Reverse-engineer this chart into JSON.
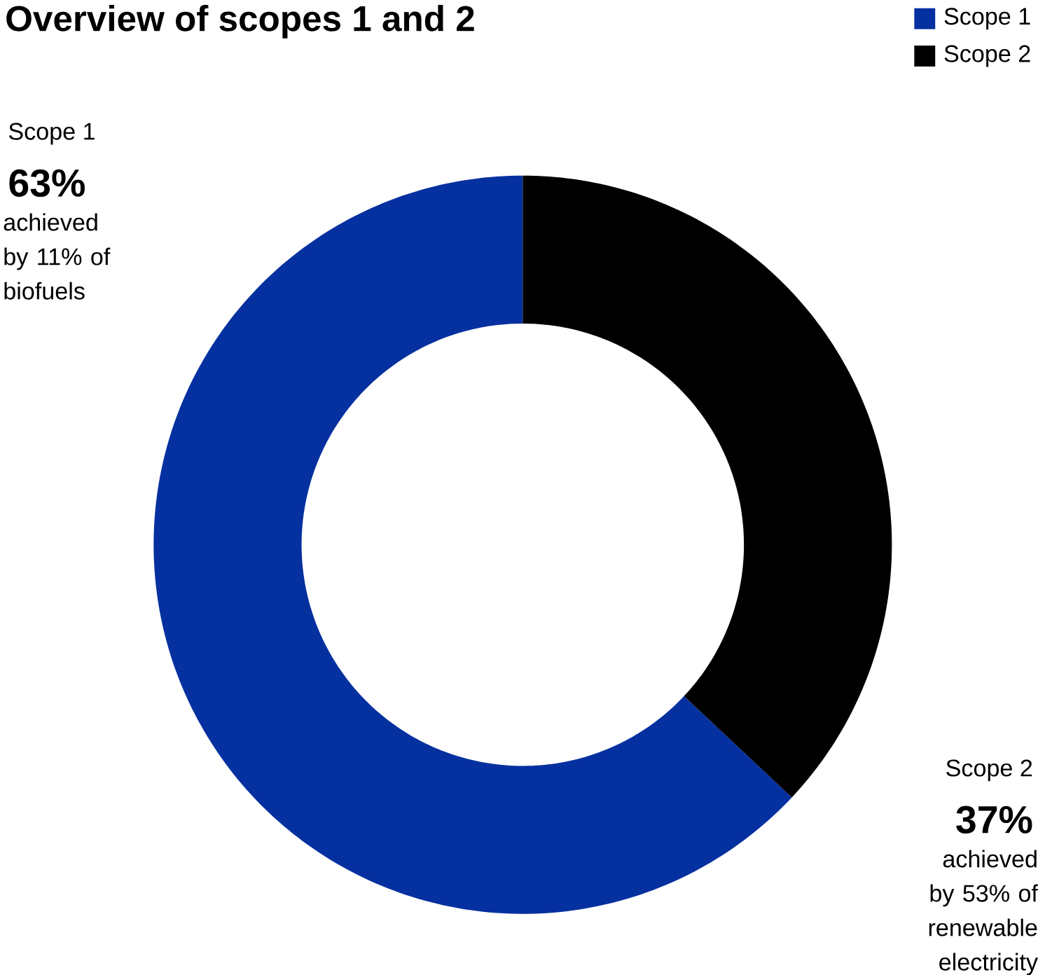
{
  "chart_data": {
    "type": "donut",
    "title": "Overview of scopes 1 and 2",
    "categories": [
      "Scope 1",
      "Scope 2"
    ],
    "values": [
      63,
      37
    ],
    "colors": [
      "#0530a0",
      "#000000"
    ],
    "value_labels": [
      "63%",
      "37%"
    ],
    "annotations": [
      "achieved by 11% of biofuels",
      "achieved by 53% of renewable electricity"
    ],
    "legend": "top right"
  }
}
